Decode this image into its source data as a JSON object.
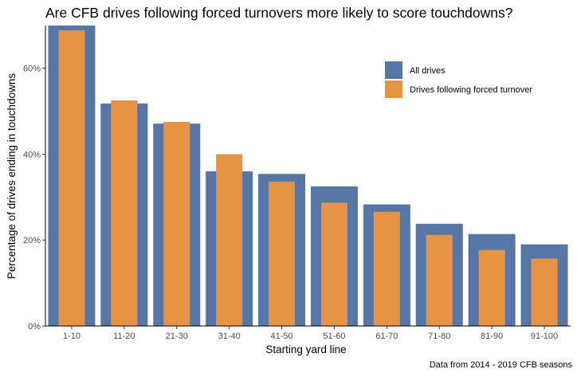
{
  "chart_data": {
    "type": "bar",
    "title": "Are CFB drives following forced turnovers more likely to score touchdowns?",
    "xlabel": "Starting yard line",
    "ylabel": "Percentage of drives ending in touchdowns",
    "caption": "Data from 2014 - 2019 CFB seasons",
    "categories": [
      "1-10",
      "11-20",
      "21-30",
      "31-40",
      "41-50",
      "51-60",
      "61-70",
      "71-80",
      "81-90",
      "91-100"
    ],
    "series": [
      {
        "name": "All drives",
        "color": "#5676a6",
        "values": [
          70.0,
          51.8,
          47.1,
          36.0,
          35.4,
          32.5,
          28.3,
          23.8,
          21.4,
          19.0
        ]
      },
      {
        "name": "Drives following forced turnover",
        "color": "#e69443",
        "values": [
          68.8,
          52.5,
          47.5,
          40.0,
          33.6,
          28.7,
          26.6,
          21.2,
          17.7,
          15.7
        ]
      }
    ],
    "yticks": [
      0,
      20,
      40,
      60
    ],
    "ytick_labels": [
      "0%",
      "20%",
      "40%",
      "60%"
    ],
    "ylim": [
      0,
      70
    ],
    "grid": false,
    "legend_position": "top-right"
  }
}
